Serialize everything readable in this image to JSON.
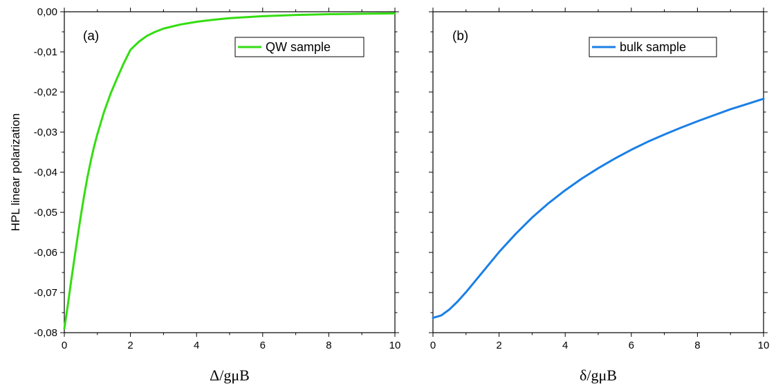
{
  "chart_data": [
    {
      "type": "line",
      "panel_label": "(a)",
      "xlabel": "Δ/gμB",
      "ylabel": "HPL linear polarization",
      "xlim": [
        0,
        10
      ],
      "ylim": [
        -0.08,
        0.0
      ],
      "x_ticks": [
        "0",
        "2",
        "4",
        "6",
        "8",
        "10"
      ],
      "y_ticks": [
        "0,00",
        "-0,01",
        "-0,02",
        "-0,03",
        "-0,04",
        "-0,05",
        "-0,06",
        "-0,07",
        "-0,08"
      ],
      "legend_position": "top-right",
      "series": [
        {
          "name": "QW sample",
          "color": "#33dd11",
          "x": [
            0,
            0.1,
            0.2,
            0.3,
            0.4,
            0.5,
            0.6,
            0.7,
            0.8,
            0.9,
            1.0,
            1.2,
            1.4,
            1.6,
            1.8,
            2.0,
            2.25,
            2.5,
            2.75,
            3.0,
            3.5,
            4.0,
            4.5,
            5.0,
            6.0,
            7.0,
            8.0,
            9.0,
            10.0
          ],
          "y": [
            -0.079,
            -0.0735,
            -0.0675,
            -0.0618,
            -0.0562,
            -0.0508,
            -0.0458,
            -0.0412,
            -0.0372,
            -0.0336,
            -0.0305,
            -0.025,
            -0.0204,
            -0.0165,
            -0.0128,
            -0.0095,
            -0.0075,
            -0.006,
            -0.005,
            -0.0042,
            -0.0032,
            -0.0025,
            -0.002,
            -0.0016,
            -0.0011,
            -0.0008,
            -0.0006,
            -0.0005,
            -0.0004
          ]
        }
      ]
    },
    {
      "type": "line",
      "panel_label": "(b)",
      "xlabel": "δ/gμB",
      "ylabel": "",
      "xlim": [
        0,
        10
      ],
      "ylim": [
        -0.08,
        0.0
      ],
      "x_ticks": [
        "0",
        "2",
        "4",
        "6",
        "8",
        "10"
      ],
      "legend_position": "top-right",
      "series": [
        {
          "name": "bulk sample",
          "color": "#1a7fe6",
          "x": [
            0,
            0.25,
            0.5,
            0.75,
            1.0,
            1.25,
            1.5,
            1.75,
            2.0,
            2.5,
            3.0,
            3.5,
            4.0,
            4.5,
            5.0,
            5.5,
            6.0,
            6.5,
            7.0,
            7.5,
            8.0,
            8.5,
            9.0,
            9.5,
            10.0
          ],
          "y": [
            -0.0763,
            -0.0757,
            -0.0742,
            -0.0722,
            -0.0699,
            -0.0674,
            -0.0649,
            -0.0624,
            -0.0599,
            -0.0554,
            -0.0513,
            -0.0477,
            -0.0445,
            -0.0416,
            -0.039,
            -0.0366,
            -0.0344,
            -0.0324,
            -0.0306,
            -0.0289,
            -0.0273,
            -0.0258,
            -0.0243,
            -0.023,
            -0.0217
          ]
        }
      ]
    }
  ]
}
